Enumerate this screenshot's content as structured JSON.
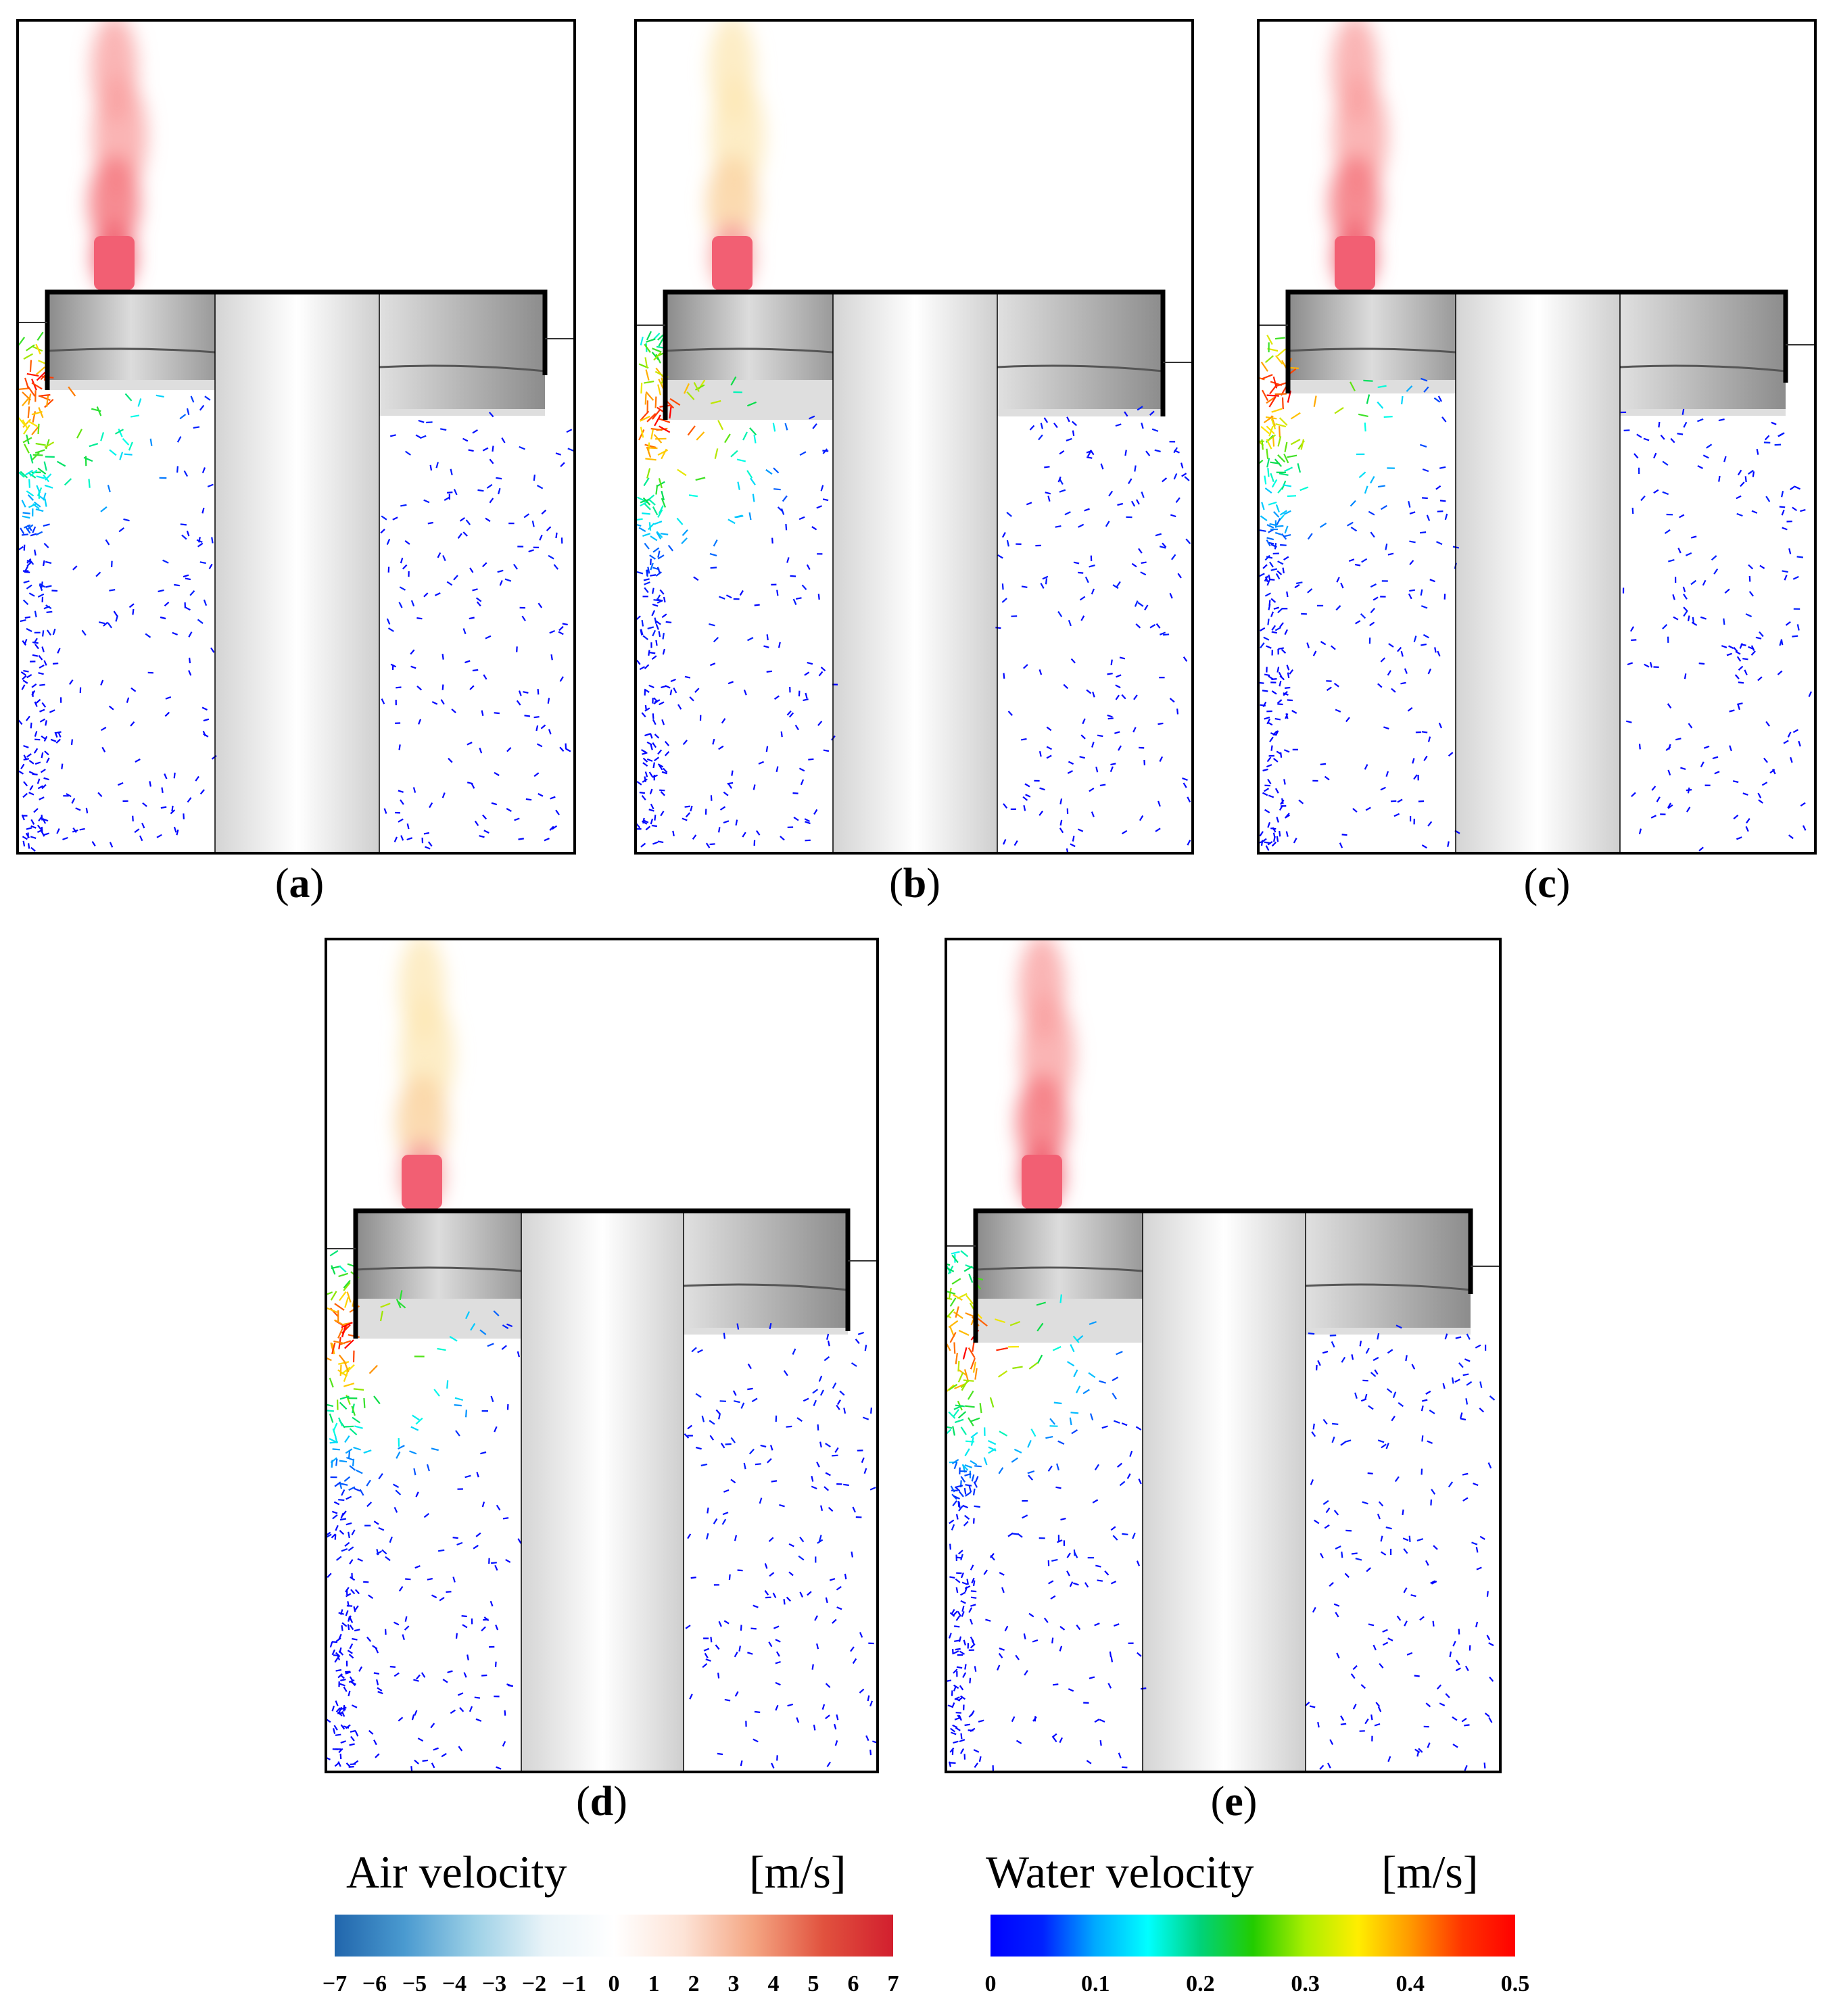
{
  "panels": [
    {
      "id": "a",
      "label": "a",
      "smoke": "red",
      "free_left": 0.13,
      "free_right": 0.16,
      "water_left": 0.26,
      "water_right": 0.22
    },
    {
      "id": "b",
      "label": "b",
      "smoke": "yellow",
      "free_left": 0.14,
      "free_right": 0.24,
      "water_left": 0.34,
      "water_right": 0.33
    },
    {
      "id": "c",
      "label": "c",
      "smoke": "red",
      "free_left": 0.14,
      "free_right": 0.18,
      "water_left": 0.27,
      "water_right": 0.24
    },
    {
      "id": "d",
      "label": "d",
      "smoke": "yellow",
      "free_left": 0.16,
      "free_right": 0.17,
      "water_left": 0.34,
      "water_right": 0.32
    },
    {
      "id": "e",
      "label": "e",
      "smoke": "red",
      "free_left": 0.15,
      "free_right": 0.19,
      "water_left": 0.35,
      "water_right": 0.22
    }
  ],
  "legend_air": {
    "title": "Air velocity",
    "unit": "[m/s]",
    "ticks": [
      "−7",
      "−6",
      "−5",
      "−4",
      "−3",
      "−2",
      "−1",
      "0",
      "1",
      "2",
      "3",
      "4",
      "5",
      "6",
      "7"
    ],
    "colors": [
      "#2166ac",
      "#4a9ad0",
      "#9cd0e6",
      "#e8f3f8",
      "#ffffff",
      "#fde3d6",
      "#f4a582",
      "#e1523e",
      "#d21f2e"
    ]
  },
  "legend_water": {
    "title": "Water velocity",
    "unit": "[m/s]",
    "ticks": [
      "0",
      "0.1",
      "0.2",
      "0.3",
      "0.4",
      "0.5"
    ],
    "colors": [
      "#0000ff",
      "#0022ff",
      "#00aaff",
      "#00ffff",
      "#00d27a",
      "#22cc00",
      "#aaee00",
      "#ffee00",
      "#ff9900",
      "#ff3300",
      "#ff0000"
    ]
  }
}
